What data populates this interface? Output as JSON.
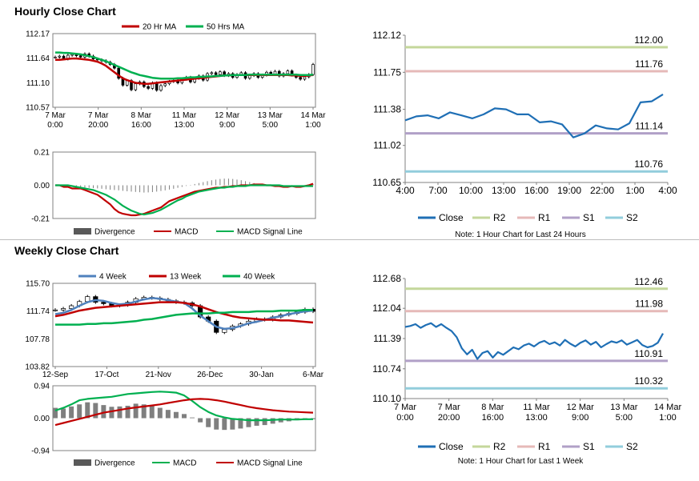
{
  "sections": {
    "hourly_title": "Hourly Close Chart",
    "weekly_title": "Weekly Close Chart"
  },
  "colors": {
    "ma20": "#c00000",
    "ma50": "#00b050",
    "w4": "#4f81bd",
    "w13": "#c00000",
    "w40": "#00b050",
    "close": "#1f6fb5",
    "r2": "#c4d79b",
    "r1": "#e6b9b8",
    "s1": "#b1a0c7",
    "s2": "#92cddc",
    "divergence": "#7f7f7f",
    "macd_red": "#c00000",
    "macd_green": "#00b050"
  },
  "chart_data": [
    {
      "id": "hourly-price",
      "type": "candlestick",
      "title": "",
      "legend": [
        "20 Hr MA",
        "50 Hrs MA"
      ],
      "yticks": [
        "112.17",
        "111.64",
        "111.10",
        "110.57"
      ],
      "ylim": [
        110.57,
        112.17
      ],
      "xticks": [
        [
          "7 Mar",
          "0:00"
        ],
        [
          "7 Mar",
          "20:00"
        ],
        [
          "8 Mar",
          "16:00"
        ],
        [
          "11 Mar",
          "13:00"
        ],
        [
          "12 Mar",
          "9:00"
        ],
        [
          "13 Mar",
          "5:00"
        ],
        [
          "14 Mar",
          "1:00"
        ]
      ],
      "close": [
        111.66,
        111.68,
        111.62,
        111.7,
        111.72,
        111.69,
        111.66,
        111.73,
        111.68,
        111.62,
        111.6,
        111.58,
        111.55,
        111.5,
        111.42,
        111.2,
        111.05,
        111.15,
        110.95,
        111.08,
        111.12,
        111.02,
        110.98,
        111.1,
        110.94,
        111.04,
        111.08,
        111.13,
        111.15,
        111.1,
        111.18,
        111.22,
        111.12,
        111.2,
        111.25,
        111.16,
        111.3,
        111.32,
        111.28,
        111.34,
        111.26,
        111.3,
        111.22,
        111.28,
        111.32,
        111.2,
        111.26,
        111.3,
        111.22,
        111.27,
        111.33,
        111.28,
        111.35,
        111.25,
        111.3,
        111.36,
        111.27,
        111.22,
        111.18,
        111.23,
        111.28,
        111.5
      ],
      "ma20": [
        111.6,
        111.6,
        111.61,
        111.62,
        111.63,
        111.63,
        111.62,
        111.61,
        111.6,
        111.58,
        111.56,
        111.52,
        111.47,
        111.4,
        111.33,
        111.26,
        111.2,
        111.16,
        111.13,
        111.1,
        111.09,
        111.08,
        111.08,
        111.09,
        111.1,
        111.11,
        111.12,
        111.13,
        111.14,
        111.15,
        111.16,
        111.17,
        111.18,
        111.19,
        111.2,
        111.21,
        111.22,
        111.23,
        111.24,
        111.25,
        111.26,
        111.26,
        111.27,
        111.27,
        111.27,
        111.27,
        111.27,
        111.27,
        111.27,
        111.27,
        111.27,
        111.27,
        111.27,
        111.27,
        111.27,
        111.27,
        111.26,
        111.26,
        111.25,
        111.25,
        111.26,
        111.27
      ],
      "ma50": [
        111.76,
        111.76,
        111.75,
        111.75,
        111.74,
        111.73,
        111.72,
        111.7,
        111.68,
        111.66,
        111.63,
        111.6,
        111.57,
        111.53,
        111.49,
        111.45,
        111.41,
        111.37,
        111.33,
        111.3,
        111.27,
        111.25,
        111.23,
        111.21,
        111.2,
        111.19,
        111.19,
        111.19,
        111.19,
        111.2,
        111.2,
        111.21,
        111.22,
        111.22,
        111.23,
        111.23,
        111.24,
        111.24,
        111.25,
        111.25,
        111.26,
        111.26,
        111.27,
        111.27,
        111.27,
        111.27,
        111.28,
        111.28,
        111.28,
        111.28,
        111.28,
        111.28,
        111.28,
        111.28,
        111.28,
        111.28,
        111.28,
        111.28,
        111.27,
        111.27,
        111.27,
        111.28
      ]
    },
    {
      "id": "hourly-macd",
      "type": "bar+line",
      "yticks": [
        "0.21",
        "0.00",
        "-0.21"
      ],
      "ylim": [
        -0.21,
        0.21
      ],
      "legend": [
        "Divergence",
        "MACD",
        "MACD Signal Line"
      ],
      "divergence": [
        0.0,
        -0.003,
        -0.005,
        -0.006,
        -0.008,
        -0.01,
        -0.012,
        -0.014,
        -0.016,
        -0.018,
        -0.02,
        -0.022,
        -0.025,
        -0.028,
        -0.03,
        -0.032,
        -0.035,
        -0.038,
        -0.04,
        -0.042,
        -0.044,
        -0.046,
        -0.045,
        -0.043,
        -0.04,
        -0.036,
        -0.032,
        -0.027,
        -0.022,
        -0.016,
        -0.01,
        -0.004,
        0.002,
        0.008,
        0.014,
        0.02,
        0.026,
        0.032,
        0.036,
        0.04,
        0.042,
        0.042,
        0.04,
        0.036,
        0.032,
        0.026,
        0.02,
        0.014,
        0.008,
        0.004,
        0.0,
        -0.004,
        -0.006,
        -0.008,
        -0.008,
        -0.008,
        -0.006,
        -0.004,
        -0.004,
        0.0,
        0.004,
        0.008
      ],
      "macd": [
        0.0,
        0.0,
        -0.01,
        -0.01,
        -0.02,
        -0.02,
        -0.02,
        -0.03,
        -0.04,
        -0.05,
        -0.06,
        -0.08,
        -0.1,
        -0.12,
        -0.15,
        -0.17,
        -0.18,
        -0.185,
        -0.19,
        -0.19,
        -0.185,
        -0.18,
        -0.17,
        -0.16,
        -0.15,
        -0.14,
        -0.12,
        -0.1,
        -0.09,
        -0.08,
        -0.07,
        -0.06,
        -0.05,
        -0.04,
        -0.035,
        -0.03,
        -0.025,
        -0.02,
        -0.015,
        -0.015,
        -0.01,
        -0.01,
        -0.005,
        -0.005,
        0.0,
        0.0,
        0.0,
        0.005,
        0.005,
        0.005,
        0.0,
        0.0,
        -0.005,
        -0.005,
        -0.01,
        -0.01,
        -0.005,
        -0.01,
        -0.01,
        -0.005,
        0.0,
        0.01
      ],
      "signal": [
        0.0,
        0.0,
        0.0,
        0.0,
        -0.005,
        -0.01,
        -0.015,
        -0.02,
        -0.025,
        -0.03,
        -0.04,
        -0.05,
        -0.06,
        -0.075,
        -0.09,
        -0.11,
        -0.13,
        -0.145,
        -0.16,
        -0.17,
        -0.18,
        -0.185,
        -0.18,
        -0.175,
        -0.165,
        -0.155,
        -0.14,
        -0.125,
        -0.11,
        -0.095,
        -0.085,
        -0.07,
        -0.06,
        -0.05,
        -0.04,
        -0.035,
        -0.03,
        -0.025,
        -0.02,
        -0.015,
        -0.015,
        -0.01,
        -0.01,
        -0.005,
        -0.005,
        -0.005,
        0.0,
        0.0,
        0.0,
        0.0,
        0.0,
        0.0,
        0.0,
        0.0,
        -0.005,
        -0.005,
        -0.005,
        -0.005,
        -0.005,
        -0.005,
        -0.005,
        -0.005
      ]
    },
    {
      "id": "hourly-levels",
      "type": "line",
      "yticks": [
        "112.12",
        "111.75",
        "111.38",
        "111.02",
        "110.65"
      ],
      "ylim": [
        110.65,
        112.12
      ],
      "xticks": [
        "4:00",
        "7:00",
        "10:00",
        "13:00",
        "16:00",
        "19:00",
        "22:00",
        "1:00",
        "4:00"
      ],
      "close": [
        111.27,
        111.31,
        111.32,
        111.29,
        111.35,
        111.32,
        111.29,
        111.33,
        111.39,
        111.38,
        111.33,
        111.33,
        111.25,
        111.26,
        111.23,
        111.1,
        111.14,
        111.22,
        111.19,
        111.18,
        111.24,
        111.45,
        111.46,
        111.53
      ],
      "levels": [
        {
          "name": "R2",
          "value": 112.0,
          "label": "112.00"
        },
        {
          "name": "R1",
          "value": 111.76,
          "label": "111.76"
        },
        {
          "name": "S1",
          "value": 111.14,
          "label": "111.14"
        },
        {
          "name": "S2",
          "value": 110.76,
          "label": "110.76"
        }
      ],
      "legend": [
        "Close",
        "R2",
        "R1",
        "S1",
        "S2"
      ],
      "note": "Note: 1 Hour Chart for Last 24 Hours"
    },
    {
      "id": "weekly-price",
      "type": "candlestick",
      "legend": [
        "4 Week",
        "13 Week",
        "40 Week"
      ],
      "yticks": [
        "115.70",
        "111.74",
        "107.78",
        "103.82"
      ],
      "ylim": [
        103.82,
        115.7
      ],
      "xticks": [
        "12-Sep",
        "17-Oct",
        "21-Nov",
        "26-Dec",
        "30-Jan",
        "6-Mar"
      ],
      "close": [
        111.9,
        112.1,
        112.5,
        113.1,
        113.8,
        113.0,
        112.8,
        112.5,
        112.6,
        113.0,
        113.5,
        113.7,
        113.6,
        113.4,
        113.2,
        113.0,
        112.9,
        112.5,
        110.9,
        110.3,
        108.7,
        109.1,
        109.6,
        109.9,
        110.3,
        110.6,
        110.5,
        110.9,
        111.2,
        111.4,
        111.6,
        112.0,
        111.7
      ],
      "w4": [
        111.3,
        111.5,
        111.9,
        112.5,
        113.0,
        113.3,
        113.2,
        112.9,
        112.7,
        112.8,
        113.1,
        113.4,
        113.6,
        113.5,
        113.3,
        113.1,
        112.9,
        112.1,
        111.1,
        110.3,
        109.5,
        109.2,
        109.3,
        109.6,
        110.0,
        110.2,
        110.5,
        110.8,
        111.0,
        111.3,
        111.5,
        111.7,
        111.8
      ],
      "w13": [
        111.0,
        111.2,
        111.5,
        111.8,
        112.0,
        112.2,
        112.3,
        112.4,
        112.5,
        112.6,
        112.7,
        112.8,
        112.9,
        113.0,
        113.0,
        113.0,
        112.9,
        112.7,
        112.4,
        112.0,
        111.6,
        111.3,
        111.0,
        110.8,
        110.7,
        110.6,
        110.5,
        110.5,
        110.4,
        110.4,
        110.3,
        110.2,
        110.1
      ],
      "w40": [
        109.8,
        109.8,
        109.8,
        109.8,
        109.9,
        109.9,
        110.0,
        110.0,
        110.1,
        110.2,
        110.3,
        110.5,
        110.6,
        110.8,
        111.0,
        111.2,
        111.3,
        111.4,
        111.4,
        111.4,
        111.5,
        111.5,
        111.6,
        111.6,
        111.6,
        111.7,
        111.7,
        111.7,
        111.8,
        111.8,
        111.8,
        111.9,
        111.9
      ]
    },
    {
      "id": "weekly-macd",
      "type": "bar+line",
      "yticks": [
        "0.94",
        "0.00",
        "-0.94"
      ],
      "ylim": [
        -0.94,
        0.94
      ],
      "legend": [
        "Divergence",
        "MACD",
        "MACD Signal Line"
      ],
      "divergence": [
        0.3,
        0.28,
        0.34,
        0.4,
        0.46,
        0.44,
        0.38,
        0.33,
        0.34,
        0.36,
        0.42,
        0.4,
        0.36,
        0.3,
        0.24,
        0.18,
        0.12,
        0.02,
        -0.12,
        -0.26,
        -0.33,
        -0.34,
        -0.33,
        -0.3,
        -0.26,
        -0.22,
        -0.2,
        -0.16,
        -0.12,
        -0.09,
        -0.06,
        -0.03,
        -0.03
      ],
      "macd": [
        0.22,
        0.3,
        0.4,
        0.52,
        0.56,
        0.58,
        0.6,
        0.62,
        0.66,
        0.7,
        0.72,
        0.74,
        0.76,
        0.77,
        0.76,
        0.74,
        0.66,
        0.5,
        0.32,
        0.18,
        0.08,
        0.02,
        -0.02,
        -0.04,
        -0.06,
        -0.06,
        -0.06,
        -0.05,
        -0.04,
        -0.04,
        -0.04,
        -0.03,
        -0.03
      ],
      "signal": [
        -0.2,
        -0.14,
        -0.08,
        -0.02,
        0.04,
        0.1,
        0.16,
        0.2,
        0.24,
        0.28,
        0.31,
        0.34,
        0.37,
        0.4,
        0.44,
        0.48,
        0.52,
        0.55,
        0.56,
        0.55,
        0.52,
        0.48,
        0.43,
        0.38,
        0.33,
        0.29,
        0.26,
        0.23,
        0.21,
        0.19,
        0.18,
        0.17,
        0.16
      ]
    },
    {
      "id": "weekly-levels",
      "type": "line",
      "yticks": [
        "112.68",
        "112.04",
        "111.39",
        "110.74",
        "110.10"
      ],
      "ylim": [
        110.1,
        112.68
      ],
      "xticks": [
        [
          "7 Mar",
          "0:00"
        ],
        [
          "7 Mar",
          "20:00"
        ],
        [
          "8 Mar",
          "16:00"
        ],
        [
          "11 Mar",
          "13:00"
        ],
        [
          "12 Mar",
          "9:00"
        ],
        [
          "13 Mar",
          "5:00"
        ],
        [
          "14 Mar",
          "1:00"
        ]
      ],
      "close": [
        111.64,
        111.66,
        111.7,
        111.62,
        111.68,
        111.72,
        111.64,
        111.7,
        111.62,
        111.55,
        111.42,
        111.18,
        111.05,
        111.15,
        110.95,
        111.08,
        111.12,
        110.98,
        111.1,
        111.04,
        111.12,
        111.2,
        111.16,
        111.24,
        111.28,
        111.22,
        111.3,
        111.34,
        111.27,
        111.31,
        111.24,
        111.36,
        111.28,
        111.22,
        111.3,
        111.35,
        111.26,
        111.32,
        111.2,
        111.27,
        111.33,
        111.3,
        111.35,
        111.26,
        111.31,
        111.36,
        111.25,
        111.2,
        111.23,
        111.3,
        111.5
      ],
      "levels": [
        {
          "name": "R2",
          "value": 112.46,
          "label": "112.46"
        },
        {
          "name": "R1",
          "value": 111.98,
          "label": "111.98"
        },
        {
          "name": "S1",
          "value": 110.91,
          "label": "110.91"
        },
        {
          "name": "S2",
          "value": 110.32,
          "label": "110.32"
        }
      ],
      "legend": [
        "Close",
        "R2",
        "R1",
        "S1",
        "S2"
      ],
      "note": "Note: 1 Hour Chart for Last 1 Week"
    }
  ]
}
